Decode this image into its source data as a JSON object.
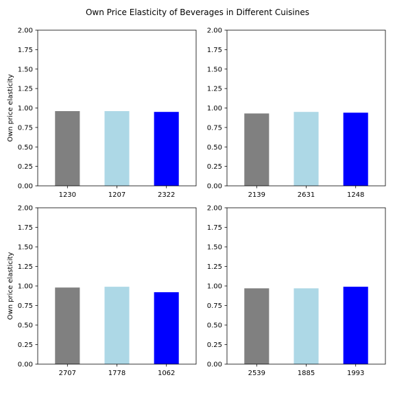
{
  "figure": {
    "title": "Own Price Elasticity of Beverages in Different Cuisines"
  },
  "chart_data": [
    {
      "type": "bar",
      "categories": [
        "1230",
        "1207",
        "2322"
      ],
      "values": [
        0.96,
        0.96,
        0.95
      ],
      "colors": [
        "#808080",
        "#add8e6",
        "#0000ff"
      ],
      "ylabel": "Own price elasticity",
      "ylim": [
        0,
        2
      ],
      "yticks": [
        "0.00",
        "0.25",
        "0.50",
        "0.75",
        "1.00",
        "1.25",
        "1.50",
        "1.75",
        "2.00"
      ],
      "grid": false
    },
    {
      "type": "bar",
      "categories": [
        "2139",
        "2631",
        "1248"
      ],
      "values": [
        0.93,
        0.95,
        0.94
      ],
      "colors": [
        "#808080",
        "#add8e6",
        "#0000ff"
      ],
      "ylabel": "",
      "ylim": [
        0,
        2
      ],
      "yticks": [
        "0.00",
        "0.25",
        "0.50",
        "0.75",
        "1.00",
        "1.25",
        "1.50",
        "1.75",
        "2.00"
      ],
      "grid": false
    },
    {
      "type": "bar",
      "categories": [
        "2707",
        "1778",
        "1062"
      ],
      "values": [
        0.98,
        0.99,
        0.92
      ],
      "colors": [
        "#808080",
        "#add8e6",
        "#0000ff"
      ],
      "ylabel": "Own price elasticity",
      "ylim": [
        0,
        2
      ],
      "yticks": [
        "0.00",
        "0.25",
        "0.50",
        "0.75",
        "1.00",
        "1.25",
        "1.50",
        "1.75",
        "2.00"
      ],
      "grid": false
    },
    {
      "type": "bar",
      "categories": [
        "2539",
        "1885",
        "1993"
      ],
      "values": [
        0.97,
        0.97,
        0.99
      ],
      "colors": [
        "#808080",
        "#add8e6",
        "#0000ff"
      ],
      "ylabel": "",
      "ylim": [
        0,
        2
      ],
      "yticks": [
        "0.00",
        "0.25",
        "0.50",
        "0.75",
        "1.00",
        "1.25",
        "1.50",
        "1.75",
        "2.00"
      ],
      "grid": false
    }
  ]
}
